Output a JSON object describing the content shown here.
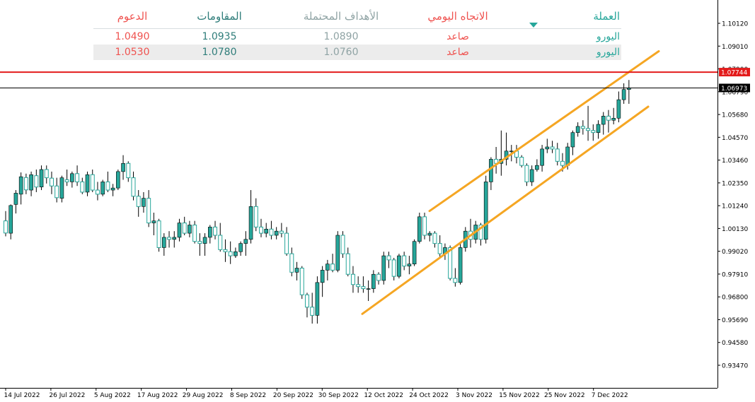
{
  "table": {
    "headers": {
      "support": "الدعوم",
      "resistance": "المقاومات",
      "targets": "الأهداف المحتملة",
      "daily_trend": "الاتجاه اليومي",
      "currency": "العملة"
    },
    "rows": [
      {
        "support": "1.0490",
        "resistance": "1.0935",
        "target": "1.0890",
        "trend": "صاعد",
        "currency": "اليورو"
      },
      {
        "support": "1.0530",
        "resistance": "1.0780",
        "target": "1.0760",
        "trend": "صاعد",
        "currency": "اليورو"
      }
    ]
  },
  "colors": {
    "bull": "#26a69a",
    "bear": "#26a69a",
    "channel": "#f5a623",
    "resistance_line": "#e31b1b",
    "price_line": "#000000",
    "header_red": "#ef5350",
    "header_teal": "#2f7d7a"
  },
  "chart_data": {
    "type": "candlestick",
    "symbol_hint": "EUR/USD daily",
    "ylim": [
      0.9294,
      1.1109
    ],
    "y_ticks": [
      "1.10120",
      "1.09010",
      "1.07900",
      "1.06790",
      "1.05680",
      "1.04570",
      "1.03460",
      "1.02350",
      "1.01240",
      "1.00130",
      "0.99020",
      "0.97910",
      "0.96800",
      "0.95690",
      "0.94580",
      "0.93470"
    ],
    "x_ticks": [
      "14 Jul 2022",
      "26 Jul 2022",
      "5 Aug 2022",
      "17 Aug 2022",
      "29 Aug 2022",
      "8 Sep 2022",
      "20 Sep 2022",
      "30 Sep 2022",
      "12 Oct 2022",
      "24 Oct 2022",
      "3 Nov 2022",
      "15 Nov 2022",
      "25 Nov 2022",
      "7 Dec 2022"
    ],
    "price_labels": {
      "resistance": {
        "value": 1.07744,
        "label": "1.07744"
      },
      "current": {
        "value": 1.06973,
        "label": "1.06973"
      }
    },
    "channel": {
      "upper": {
        "from": {
          "x": "24 Oct 2022",
          "y": 1.0098
        },
        "to": {
          "x": "19 Dec 2022",
          "y": 1.0876
        }
      },
      "lower": {
        "from": {
          "x": "28 Sep 2022",
          "y": 0.9597
        },
        "to": {
          "x": "21 Dec 2022",
          "y": 1.0606
        }
      }
    },
    "ohlc": [
      [
        1.005,
        1.0098,
        0.9975,
        0.9991
      ],
      [
        0.999,
        1.013,
        0.996,
        1.0125
      ],
      [
        1.013,
        1.02,
        1.0086,
        1.0185
      ],
      [
        1.018,
        1.0286,
        1.013,
        1.0265
      ],
      [
        1.0261,
        1.028,
        1.018,
        1.0201
      ],
      [
        1.02,
        1.029,
        1.017,
        1.0275
      ],
      [
        1.027,
        1.03,
        1.019,
        1.0215
      ],
      [
        1.0215,
        1.032,
        1.02,
        1.03
      ],
      [
        1.03,
        1.032,
        1.0232,
        1.026
      ],
      [
        1.0258,
        1.029,
        1.018,
        1.022
      ],
      [
        1.022,
        1.026,
        1.014,
        1.0163
      ],
      [
        1.016,
        1.027,
        1.014,
        1.026
      ],
      [
        1.025,
        1.03,
        1.022,
        1.024
      ],
      [
        1.024,
        1.029,
        1.0212,
        1.028
      ],
      [
        1.028,
        1.032,
        1.022,
        1.024
      ],
      [
        1.024,
        1.026,
        1.018,
        1.019
      ],
      [
        1.019,
        1.029,
        1.017,
        1.0275
      ],
      [
        1.0275,
        1.03,
        1.019,
        1.02
      ],
      [
        1.02,
        1.024,
        1.015,
        1.018
      ],
      [
        1.018,
        1.025,
        1.017,
        1.024
      ],
      [
        1.024,
        1.029,
        1.019,
        1.02
      ],
      [
        1.02,
        1.023,
        1.017,
        1.021
      ],
      [
        1.021,
        1.03,
        1.02,
        1.029
      ],
      [
        1.029,
        1.037,
        1.025,
        1.033
      ],
      [
        1.033,
        1.034,
        1.024,
        1.026
      ],
      [
        1.026,
        1.029,
        1.015,
        1.017
      ],
      [
        1.017,
        1.02,
        1.007,
        1.012
      ],
      [
        1.012,
        1.019,
        1.009,
        1.016
      ],
      [
        1.016,
        1.02,
        1.002,
        1.004
      ],
      [
        1.004,
        1.009,
        0.998,
        1.005
      ],
      [
        1.005,
        1.006,
        0.99,
        0.992
      ],
      [
        0.992,
        0.999,
        0.988,
        0.997
      ],
      [
        0.997,
        1.0,
        0.992,
        0.996
      ],
      [
        0.996,
        1.0,
        0.992,
        0.997
      ],
      [
        0.997,
        1.006,
        0.995,
        1.004
      ],
      [
        1.004,
        1.007,
        0.998,
        0.999
      ],
      [
        0.999,
        1.005,
        0.997,
        1.003
      ],
      [
        1.003,
        1.005,
        0.994,
        0.995
      ],
      [
        0.995,
        0.999,
        0.988,
        0.994
      ],
      [
        0.994,
        0.999,
        0.988,
        0.997
      ],
      [
        0.997,
        1.003,
        0.994,
        1.002
      ],
      [
        1.002,
        1.005,
        0.996,
        0.998
      ],
      [
        0.998,
        1.004,
        0.99,
        0.991
      ],
      [
        0.991,
        0.996,
        0.985,
        0.99
      ],
      [
        0.99,
        0.995,
        0.984,
        0.988
      ],
      [
        0.988,
        0.992,
        0.987,
        0.99
      ],
      [
        0.99,
        0.995,
        0.988,
        0.994
      ],
      [
        0.994,
        1.0,
        0.988,
        0.996
      ],
      [
        0.996,
        1.02,
        0.994,
        1.012
      ],
      [
        1.012,
        1.016,
        1.0,
        1.002
      ],
      [
        1.002,
        1.006,
        0.997,
        0.999
      ],
      [
        0.999,
        1.004,
        0.997,
        1.001
      ],
      [
        1.001,
        1.005,
        0.996,
        0.998
      ],
      [
        0.998,
        1.002,
        0.996,
        1.0
      ],
      [
        1.0,
        1.004,
        0.997,
        0.999
      ],
      [
        0.999,
        1.002,
        0.988,
        0.989
      ],
      [
        0.989,
        0.992,
        0.978,
        0.98
      ],
      [
        0.98,
        0.985,
        0.976,
        0.982
      ],
      [
        0.982,
        0.983,
        0.967,
        0.969
      ],
      [
        0.969,
        0.97,
        0.958,
        0.963
      ],
      [
        0.963,
        0.97,
        0.955,
        0.959
      ],
      [
        0.959,
        0.978,
        0.955,
        0.975
      ],
      [
        0.975,
        0.983,
        0.968,
        0.981
      ],
      [
        0.981,
        0.986,
        0.976,
        0.984
      ],
      [
        0.984,
        0.989,
        0.98,
        0.981
      ],
      [
        0.981,
        1.0,
        0.98,
        0.998
      ],
      [
        0.998,
        1.0,
        0.987,
        0.989
      ],
      [
        0.989,
        0.992,
        0.978,
        0.979
      ],
      [
        0.979,
        0.983,
        0.97,
        0.974
      ],
      [
        0.974,
        0.978,
        0.97,
        0.973
      ],
      [
        0.973,
        0.978,
        0.97,
        0.972
      ],
      [
        0.972,
        0.976,
        0.966,
        0.972
      ],
      [
        0.972,
        0.981,
        0.97,
        0.979
      ],
      [
        0.979,
        0.98,
        0.974,
        0.976
      ],
      [
        0.976,
        0.99,
        0.974,
        0.988
      ],
      [
        0.988,
        0.99,
        0.982,
        0.986
      ],
      [
        0.986,
        0.987,
        0.976,
        0.978
      ],
      [
        0.978,
        0.989,
        0.977,
        0.988
      ],
      [
        0.988,
        0.99,
        0.981,
        0.983
      ],
      [
        0.983,
        0.988,
        0.979,
        0.984
      ],
      [
        0.984,
        0.996,
        0.983,
        0.995
      ],
      [
        0.995,
        1.009,
        0.994,
        1.007
      ],
      [
        1.007,
        1.009,
        0.996,
        0.998
      ],
      [
        0.998,
        1.0,
        0.995,
        0.999
      ],
      [
        0.999,
        1.0,
        0.992,
        0.994
      ],
      [
        0.994,
        0.998,
        0.987,
        0.989
      ],
      [
        0.989,
        0.994,
        0.986,
        0.992
      ],
      [
        0.992,
        0.993,
        0.976,
        0.977
      ],
      [
        0.977,
        0.982,
        0.973,
        0.975
      ],
      [
        0.975,
        0.994,
        0.974,
        0.992
      ],
      [
        0.992,
        1.002,
        0.99,
        1.0
      ],
      [
        1.0,
        1.006,
        0.992,
        0.996
      ],
      [
        0.996,
        1.005,
        0.994,
        1.003
      ],
      [
        1.003,
        1.004,
        0.993,
        0.996
      ],
      [
        0.996,
        1.027,
        0.994,
        1.024
      ],
      [
        1.024,
        1.036,
        1.02,
        1.035
      ],
      [
        1.035,
        1.041,
        1.028,
        1.033
      ],
      [
        1.033,
        1.049,
        1.027,
        1.035
      ],
      [
        1.035,
        1.048,
        1.032,
        1.039
      ],
      [
        1.039,
        1.042,
        1.034,
        1.039
      ],
      [
        1.039,
        1.042,
        1.033,
        1.036
      ],
      [
        1.036,
        1.037,
        1.031,
        1.032
      ],
      [
        1.032,
        1.033,
        1.022,
        1.024
      ],
      [
        1.024,
        1.032,
        1.022,
        1.03
      ],
      [
        1.03,
        1.035,
        1.029,
        1.032
      ],
      [
        1.032,
        1.042,
        1.029,
        1.04
      ],
      [
        1.04,
        1.045,
        1.038,
        1.041
      ],
      [
        1.041,
        1.044,
        1.038,
        1.04
      ],
      [
        1.04,
        1.043,
        1.032,
        1.034
      ],
      [
        1.034,
        1.038,
        1.029,
        1.032
      ],
      [
        1.032,
        1.043,
        1.03,
        1.041
      ],
      [
        1.041,
        1.049,
        1.037,
        1.048
      ],
      [
        1.048,
        1.053,
        1.046,
        1.051
      ],
      [
        1.051,
        1.054,
        1.047,
        1.05
      ],
      [
        1.05,
        1.061,
        1.044,
        1.049
      ],
      [
        1.049,
        1.052,
        1.044,
        1.048
      ],
      [
        1.048,
        1.054,
        1.045,
        1.052
      ],
      [
        1.052,
        1.058,
        1.047,
        1.056
      ],
      [
        1.056,
        1.059,
        1.048,
        1.054
      ],
      [
        1.054,
        1.06,
        1.052,
        1.055
      ],
      [
        1.055,
        1.068,
        1.053,
        1.064
      ],
      [
        1.064,
        1.072,
        1.062,
        1.069
      ],
      [
        1.069,
        1.0736,
        1.062,
        1.0697
      ]
    ]
  }
}
